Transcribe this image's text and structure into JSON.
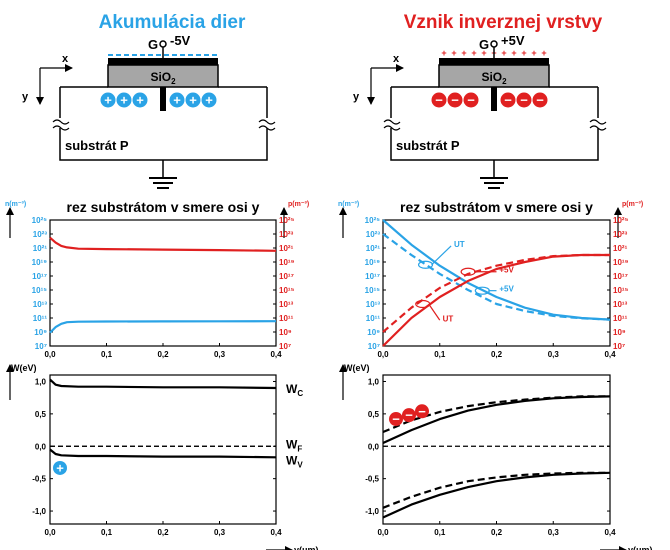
{
  "colors": {
    "blue": "#2aa3e6",
    "red": "#e02020",
    "black": "#000000",
    "oxide": "#a6a6a6"
  },
  "left": {
    "title": "Akumulácia dier",
    "gate_label": "G",
    "gate_voltage": "-5V",
    "oxide_label": "SiO",
    "oxide_sub": "2",
    "x_axis": "x",
    "y_axis": "y",
    "substrate_label": "substrát P",
    "carrier_symbol": "+"
  },
  "right": {
    "title": "Vznik inverznej vrstvy",
    "gate_label": "G",
    "gate_voltage": "+5V",
    "oxide_label": "SiO",
    "oxide_sub": "2",
    "x_axis": "x",
    "y_axis": "y",
    "substrate_label": "substrát P",
    "carrier_symbol": "−",
    "gate_charge": "+"
  },
  "chart_data": [
    {
      "type": "line",
      "title": "rez substrátom v smere osi y",
      "xlabel": "y(μm)",
      "ylabel_left": "n(m⁻³)",
      "ylabel_right": "p(m⁻³)",
      "log_scale": true,
      "xlim": [
        0,
        0.4
      ],
      "ylim": [
        10000000.0,
        1e+25
      ],
      "x_ticks": [
        "0,0",
        "0,1",
        "0,2",
        "0,3",
        "0,4"
      ],
      "y_ticks": [
        "10²⁵",
        "10²³",
        "10²¹",
        "10¹⁹",
        "10¹⁷",
        "10¹⁵",
        "10¹³",
        "10¹¹",
        "10⁹",
        "10⁷"
      ],
      "series": [
        {
          "color": "#e02020",
          "x": [
            0,
            0.01,
            0.02,
            0.03,
            0.05,
            0.1,
            0.2,
            0.3,
            0.4
          ],
          "y": [
            3e+22,
            6e+21,
            2e+21,
            1.2e+21,
            8e+20,
            7e+20,
            6e+20,
            5e+20,
            4e+20
          ]
        },
        {
          "color": "#2aa3e6",
          "x": [
            0,
            0.01,
            0.02,
            0.03,
            0.05,
            0.1,
            0.2,
            0.3,
            0.4
          ],
          "y": [
            800000000.0,
            5000000000.0,
            15000000000.0,
            25000000000.0,
            30000000000.0,
            32000000000.0,
            33000000000.0,
            34000000000.0,
            35000000000.0
          ]
        }
      ]
    },
    {
      "type": "line",
      "title": "rez substrátom v smere osi y",
      "xlabel": "y(μm)",
      "ylabel_left": "n(m⁻³)",
      "ylabel_right": "p(m⁻³)",
      "log_scale": true,
      "xlim": [
        0,
        0.4
      ],
      "ylim": [
        10000000.0,
        1e+25
      ],
      "x_ticks": [
        "0,0",
        "0,1",
        "0,2",
        "0,3",
        "0,4"
      ],
      "y_ticks": [
        "10²⁵",
        "10²³",
        "10²¹",
        "10¹⁹",
        "10¹⁷",
        "10¹⁵",
        "10¹³",
        "10¹¹",
        "10⁹",
        "10⁷"
      ],
      "annotations": [
        "UT",
        "+5V",
        "+5V",
        "UT"
      ],
      "series": [
        {
          "color": "#2aa3e6",
          "dash": false,
          "x": [
            0,
            0.05,
            0.1,
            0.15,
            0.2,
            0.25,
            0.3,
            0.35,
            0.4
          ],
          "y": [
            1e+25,
            3e+21,
            3e+18,
            1e+16,
            100000000000000.0,
            3000000000000.0,
            300000000000.0,
            100000000000.0,
            60000000000.0
          ]
        },
        {
          "color": "#2aa3e6",
          "dash": true,
          "x": [
            0,
            0.05,
            0.1,
            0.15,
            0.2,
            0.25,
            0.3,
            0.35,
            0.4
          ],
          "y": [
            1e+23,
            1e+20,
            2e+17,
            1000000000000000.0,
            10000000000000.0,
            1000000000000.0,
            200000000000.0,
            90000000000.0,
            60000000000.0
          ]
        },
        {
          "color": "#e02020",
          "dash": false,
          "x": [
            0,
            0.05,
            0.1,
            0.15,
            0.2,
            0.25,
            0.3,
            0.35,
            0.4
          ],
          "y": [
            10000000.0,
            100000000000.0,
            100000000000000.0,
            2e+16,
            1e+18,
            1e+19,
            6e+19,
            1e+20,
            1e+20
          ]
        },
        {
          "color": "#e02020",
          "dash": true,
          "x": [
            0,
            0.05,
            0.1,
            0.15,
            0.2,
            0.25,
            0.3,
            0.35,
            0.4
          ],
          "y": [
            1000000000.0,
            3000000000000.0,
            2000000000000000.0,
            2e+17,
            3e+18,
            2e+19,
            7e+19,
            1e+20,
            1e+20
          ]
        }
      ]
    },
    {
      "type": "line",
      "xlabel": "y(μm)",
      "ylabel": "W(eV)",
      "xlim": [
        0,
        0.4
      ],
      "ylim": [
        -1.2,
        1.1
      ],
      "x_ticks": [
        "0,0",
        "0,1",
        "0,2",
        "0,3",
        "0,4"
      ],
      "y_ticks": [
        "1,0",
        "0,5",
        "0,0",
        "-0,5",
        "-1,0"
      ],
      "labels": {
        "wc": "W",
        "wc_sub": "C",
        "wf": "W",
        "wf_sub": "F",
        "wv": "W",
        "wv_sub": "V"
      },
      "series": [
        {
          "name": "WC",
          "x": [
            0,
            0.01,
            0.02,
            0.05,
            0.1,
            0.2,
            0.3,
            0.4
          ],
          "y": [
            1.03,
            0.95,
            0.93,
            0.92,
            0.92,
            0.91,
            0.91,
            0.9
          ]
        },
        {
          "name": "WF",
          "dash": true,
          "x": [
            0,
            0.4
          ],
          "y": [
            0,
            0
          ]
        },
        {
          "name": "WV",
          "x": [
            0,
            0.01,
            0.02,
            0.05,
            0.1,
            0.2,
            0.3,
            0.4
          ],
          "y": [
            -0.05,
            -0.12,
            -0.14,
            -0.15,
            -0.15,
            -0.16,
            -0.16,
            -0.17
          ]
        }
      ]
    },
    {
      "type": "line",
      "xlabel": "y(μm)",
      "ylabel": "W(eV)",
      "xlim": [
        0,
        0.4
      ],
      "ylim": [
        -1.2,
        1.1
      ],
      "x_ticks": [
        "0,0",
        "0,1",
        "0,2",
        "0,3",
        "0,4"
      ],
      "y_ticks": [
        "1,0",
        "0,5",
        "0,0",
        "-0,5",
        "-1,0"
      ],
      "series": [
        {
          "dash": false,
          "x": [
            0,
            0.05,
            0.1,
            0.15,
            0.2,
            0.25,
            0.3,
            0.35,
            0.4
          ],
          "y": [
            0.05,
            0.25,
            0.42,
            0.55,
            0.64,
            0.7,
            0.74,
            0.76,
            0.77
          ]
        },
        {
          "dash": true,
          "x": [
            0,
            0.05,
            0.1,
            0.15,
            0.2,
            0.25,
            0.3,
            0.35,
            0.4
          ],
          "y": [
            0.22,
            0.4,
            0.53,
            0.62,
            0.68,
            0.72,
            0.75,
            0.77,
            0.77
          ]
        },
        {
          "dash": false,
          "x": [
            0,
            0.05,
            0.1,
            0.15,
            0.2,
            0.25,
            0.3,
            0.35,
            0.4
          ],
          "y": [
            -1.1,
            -0.9,
            -0.75,
            -0.63,
            -0.54,
            -0.48,
            -0.44,
            -0.42,
            -0.41
          ]
        },
        {
          "dash": true,
          "x": [
            0,
            0.05,
            0.1,
            0.15,
            0.2,
            0.25,
            0.3,
            0.35,
            0.4
          ],
          "y": [
            -0.95,
            -0.78,
            -0.64,
            -0.54,
            -0.48,
            -0.44,
            -0.42,
            -0.41,
            -0.41
          ]
        }
      ]
    }
  ]
}
